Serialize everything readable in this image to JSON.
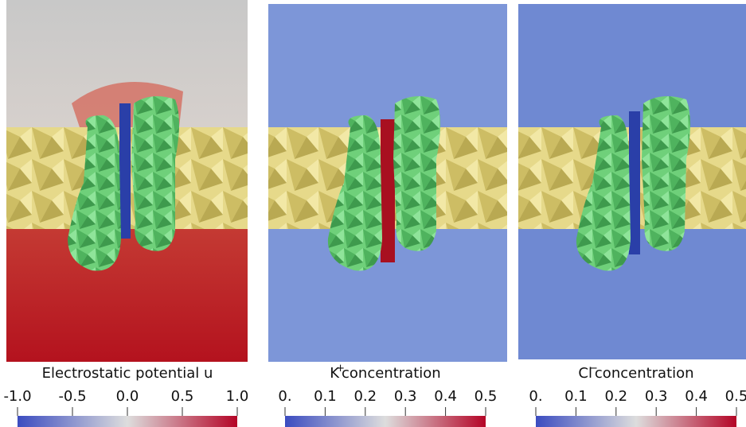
{
  "panels": [
    {
      "title": [
        "Electrostatic potential u"
      ],
      "range": [
        -1,
        1
      ],
      "ticks": [
        {
          "value": -1,
          "label": "-1.0"
        },
        {
          "value": -0.5,
          "label": "-0.5"
        },
        {
          "value": 0,
          "label": "0.0"
        },
        {
          "value": 0.5,
          "label": "0.5"
        },
        {
          "value": 1,
          "label": "1.0"
        }
      ]
    },
    {
      "title": [
        "K",
        "+",
        "concentration"
      ],
      "range": [
        0,
        0.5
      ],
      "ticks": [
        {
          "value": 0,
          "label": "0."
        },
        0.1,
        0.2,
        0.3,
        0.4,
        0.5
      ]
    },
    {
      "title": [
        "Cl",
        "−",
        "concentration"
      ],
      "range": [
        0,
        0.5
      ],
      "ticks": [
        {
          "value": 0,
          "label": "0."
        },
        0.1,
        0.2,
        0.3,
        0.4,
        0.5
      ]
    }
  ]
}
